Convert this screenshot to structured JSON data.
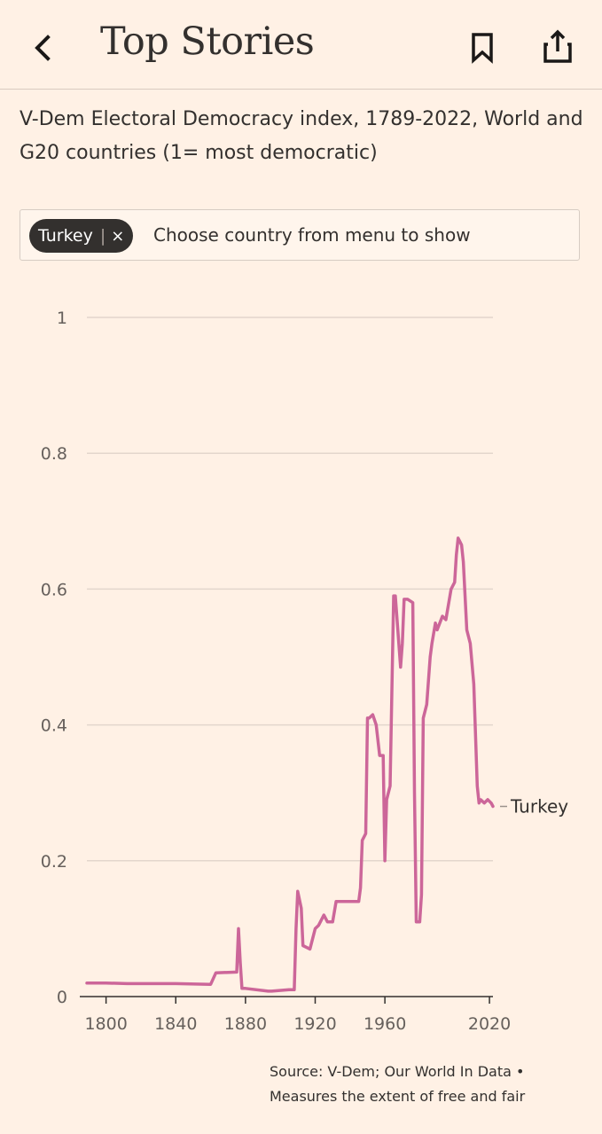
{
  "header": {
    "title": "Top Stories",
    "back_icon": "chevron-left-icon",
    "bookmark_icon": "bookmark-icon",
    "share_icon": "share-icon"
  },
  "subtitle": "V-Dem Electoral Democracy index, 1789-2022, World and G20 countries (1= most democratic)",
  "selector": {
    "chip_label": "Turkey",
    "chip_separator": "|",
    "chip_remove": "×",
    "placeholder": "Choose country from menu to show"
  },
  "chart_data": {
    "type": "line",
    "title": "",
    "xlabel": "",
    "ylabel": "",
    "xlim": [
      1789,
      2022
    ],
    "ylim": [
      0,
      1
    ],
    "yticks": [
      0,
      0.2,
      0.4,
      0.6,
      0.8,
      1
    ],
    "ytick_labels": [
      "0",
      "0.2",
      "0.4",
      "0.6",
      "0.8",
      "1"
    ],
    "xticks": [
      1800,
      1840,
      1880,
      1920,
      1960,
      2020
    ],
    "xtick_labels": [
      "1800",
      "1840",
      "1880",
      "1920",
      "1960",
      "2020"
    ],
    "grid": true,
    "colors": {
      "series": "#cc6699",
      "grid": "#e3d6cc",
      "axis": "#33302e"
    },
    "series": [
      {
        "name": "Turkey",
        "x": [
          1789,
          1800,
          1812,
          1840,
          1860,
          1863,
          1875,
          1876,
          1877,
          1878,
          1880,
          1893,
          1895,
          1905,
          1908,
          1909,
          1910,
          1912,
          1913,
          1917,
          1920,
          1922,
          1925,
          1927,
          1930,
          1932,
          1935,
          1937,
          1945,
          1946,
          1947,
          1949,
          1950,
          1951,
          1953,
          1955,
          1957,
          1959,
          1960,
          1961,
          1963,
          1965,
          1966,
          1969,
          1970,
          1971,
          1973,
          1976,
          1977,
          1978,
          1980,
          1981,
          1982,
          1984,
          1986,
          1987,
          1989,
          1990,
          1993,
          1995,
          1998,
          2000,
          2001,
          2002,
          2003,
          2004,
          2005,
          2007,
          2009,
          2011,
          2013,
          2014,
          2015,
          2017,
          2019,
          2021,
          2022
        ],
        "y": [
          0.02,
          0.02,
          0.019,
          0.019,
          0.018,
          0.035,
          0.036,
          0.1,
          0.05,
          0.012,
          0.012,
          0.008,
          0.008,
          0.01,
          0.01,
          0.1,
          0.155,
          0.13,
          0.075,
          0.07,
          0.1,
          0.105,
          0.12,
          0.11,
          0.11,
          0.14,
          0.14,
          0.14,
          0.14,
          0.16,
          0.23,
          0.24,
          0.41,
          0.41,
          0.415,
          0.4,
          0.355,
          0.355,
          0.2,
          0.29,
          0.31,
          0.59,
          0.59,
          0.485,
          0.52,
          0.585,
          0.585,
          0.58,
          0.3,
          0.11,
          0.11,
          0.15,
          0.41,
          0.43,
          0.5,
          0.52,
          0.55,
          0.54,
          0.56,
          0.555,
          0.6,
          0.61,
          0.65,
          0.675,
          0.67,
          0.665,
          0.64,
          0.54,
          0.52,
          0.46,
          0.31,
          0.285,
          0.29,
          0.285,
          0.29,
          0.285,
          0.28
        ]
      }
    ]
  },
  "source": {
    "line1": "Source: V-Dem; Our World In Data •",
    "line2": "Measures the extent of free and fair"
  }
}
